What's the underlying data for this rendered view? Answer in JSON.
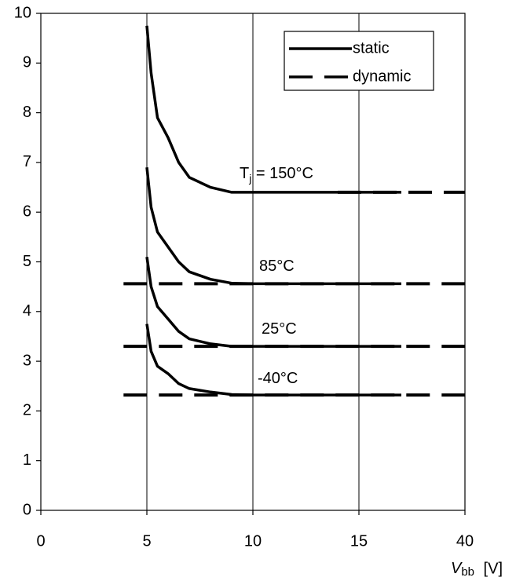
{
  "chart_data": {
    "type": "line",
    "xlabel": {
      "main": "V",
      "sub": "bb",
      "unit": "[V]"
    },
    "xlim": [
      0,
      40
    ],
    "xticks": [
      0,
      5,
      10,
      15,
      40
    ],
    "ylim": [
      0,
      10
    ],
    "yticks": [
      0,
      1,
      2,
      3,
      4,
      5,
      6,
      7,
      8,
      9,
      10
    ],
    "grid": true,
    "color": "#000000",
    "legend": [
      {
        "name": "static",
        "dashed": false
      },
      {
        "name": "dynamic",
        "dashed": true
      }
    ],
    "series": [
      {
        "dashed": false,
        "x": [
          5,
          5.2,
          5.5,
          6,
          6.5,
          7,
          8,
          9,
          10,
          25
        ],
        "values": [
          9.75,
          8.8,
          7.9,
          7.5,
          7.0,
          6.7,
          6.5,
          6.4,
          6.4,
          6.4
        ]
      },
      {
        "dashed": false,
        "x": [
          5,
          5.2,
          5.5,
          6,
          6.5,
          7,
          8,
          9,
          10,
          25
        ],
        "values": [
          6.9,
          6.1,
          5.6,
          5.3,
          5.0,
          4.8,
          4.65,
          4.57,
          4.56,
          4.56
        ]
      },
      {
        "dashed": false,
        "x": [
          5,
          5.2,
          5.5,
          6,
          6.5,
          7,
          8,
          9,
          10,
          25
        ],
        "values": [
          5.1,
          4.5,
          4.1,
          3.85,
          3.6,
          3.45,
          3.35,
          3.3,
          3.3,
          3.3
        ]
      },
      {
        "dashed": false,
        "x": [
          5,
          5.2,
          5.5,
          6,
          6.5,
          7,
          8,
          9,
          10,
          25
        ],
        "values": [
          3.75,
          3.2,
          2.9,
          2.75,
          2.55,
          2.45,
          2.38,
          2.33,
          2.32,
          2.32
        ]
      },
      {
        "dashed": true,
        "x": [
          14,
          40
        ],
        "values": [
          6.4,
          6.4
        ]
      },
      {
        "dashed": true,
        "x": [
          3.9,
          40
        ],
        "values": [
          4.56,
          4.56
        ]
      },
      {
        "dashed": true,
        "x": [
          3.9,
          40
        ],
        "values": [
          3.3,
          3.3
        ]
      },
      {
        "dashed": true,
        "x": [
          3.9,
          40
        ],
        "values": [
          2.32,
          2.32
        ]
      }
    ],
    "annotations": [
      {
        "text": "T",
        "sub": "j",
        "rest": " = 150°C"
      },
      {
        "text": "85°C"
      },
      {
        "text": "25°C"
      },
      {
        "text": "-40°C"
      }
    ]
  }
}
